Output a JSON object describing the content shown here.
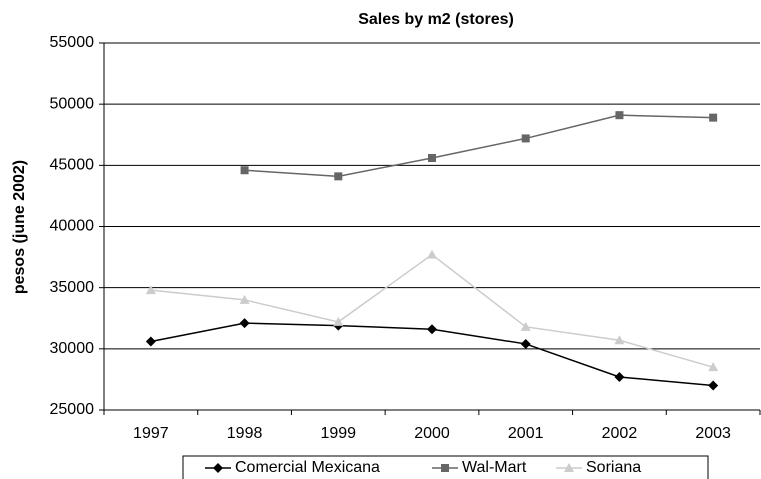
{
  "chart_data": {
    "type": "line",
    "title": "Sales by m2 (stores)",
    "y_label": "pesos (june 2002)",
    "categories": [
      "1997",
      "1998",
      "1999",
      "2000",
      "2001",
      "2002",
      "2003"
    ],
    "series": [
      {
        "name": "Comercial Mexicana",
        "color": "#000000",
        "marker": "diamond",
        "values": [
          30600,
          32100,
          31900,
          31600,
          30400,
          27700,
          27000
        ]
      },
      {
        "name": "Wal-Mart",
        "color": "#666666",
        "marker": "square",
        "values": [
          null,
          44600,
          44100,
          45600,
          47200,
          49100,
          48900
        ]
      },
      {
        "name": "Soriana",
        "color": "#cccccc",
        "marker": "triangle",
        "values": [
          34800,
          34000,
          32200,
          37700,
          31800,
          30700,
          28500
        ]
      }
    ],
    "ylim": [
      25000,
      55000
    ],
    "yticks": [
      25000,
      30000,
      35000,
      40000,
      45000,
      50000,
      55000
    ],
    "grid": true,
    "legend": "bottom"
  }
}
